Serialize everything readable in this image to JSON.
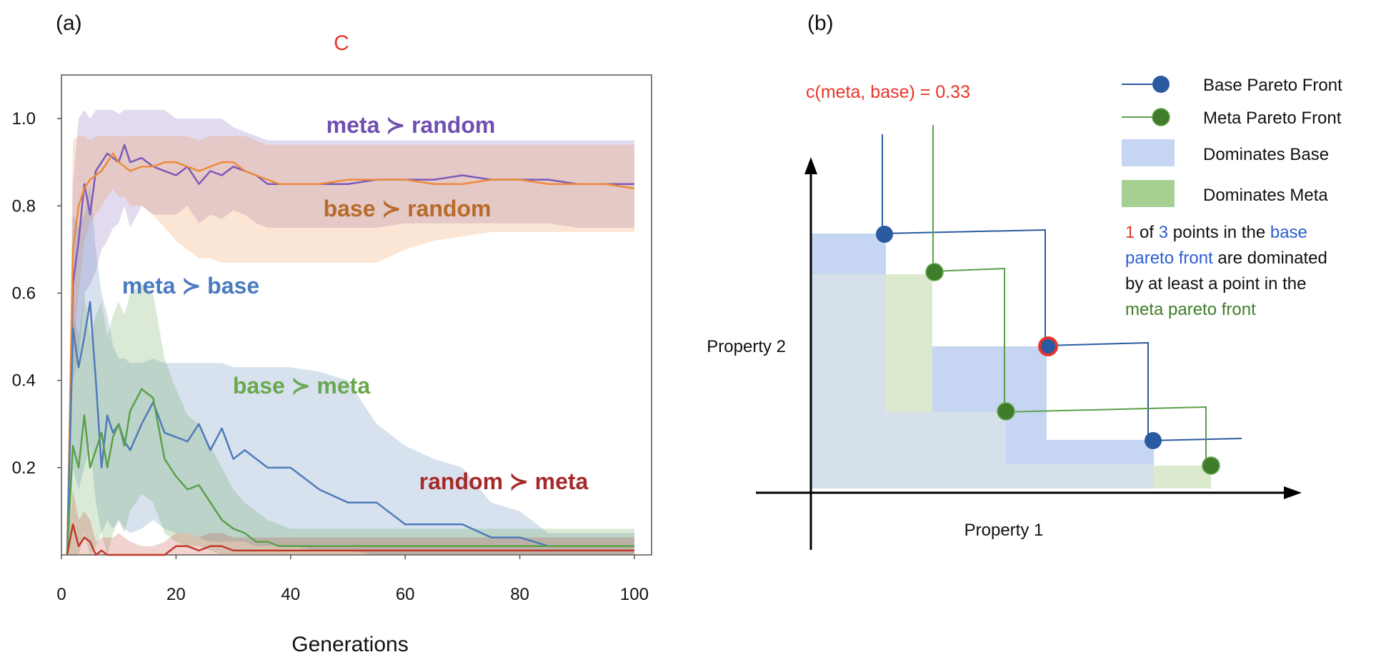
{
  "chart_data": [
    {
      "type": "line",
      "panel_label": "(a)",
      "title": "C",
      "xlabel": "Generations",
      "ylabel": "",
      "xlim": [
        0,
        103
      ],
      "ylim": [
        0,
        1.1
      ],
      "xticks": [
        0,
        20,
        40,
        60,
        80,
        100
      ],
      "yticks": [
        0.2,
        0.4,
        0.6,
        0.8,
        1.0
      ],
      "xtick_labels": [
        "0",
        "20",
        "40",
        "60",
        "80",
        "100"
      ],
      "ytick_labels": [
        "0.2",
        "0.4",
        "0.6",
        "0.8",
        "1.0"
      ],
      "x": [
        1,
        2,
        3,
        4,
        5,
        6,
        7,
        8,
        9,
        10,
        11,
        12,
        14,
        16,
        18,
        20,
        22,
        24,
        26,
        28,
        30,
        32,
        34,
        36,
        38,
        40,
        45,
        50,
        55,
        60,
        65,
        70,
        75,
        80,
        85,
        90,
        95,
        100
      ],
      "series": [
        {
          "name": "meta ≻ random",
          "color": "#7b5bb8",
          "label_color": "#6f4fb0",
          "values": [
            0,
            0.62,
            0.72,
            0.85,
            0.78,
            0.88,
            0.9,
            0.92,
            0.91,
            0.9,
            0.94,
            0.9,
            0.91,
            0.89,
            0.88,
            0.87,
            0.89,
            0.85,
            0.88,
            0.87,
            0.89,
            0.88,
            0.87,
            0.85,
            0.85,
            0.85,
            0.85,
            0.85,
            0.86,
            0.86,
            0.86,
            0.87,
            0.86,
            0.86,
            0.86,
            0.85,
            0.85,
            0.85
          ],
          "band_upper": [
            0,
            0.85,
            1.0,
            1.02,
            1.0,
            1.02,
            1.02,
            1.02,
            1.02,
            1.01,
            1.02,
            1.02,
            1.02,
            1.02,
            1.02,
            1.0,
            1.0,
            1.0,
            1.0,
            1.0,
            0.98,
            0.97,
            0.96,
            0.95,
            0.95,
            0.95,
            0.95,
            0.95,
            0.95,
            0.95,
            0.95,
            0.95,
            0.95,
            0.95,
            0.95,
            0.95,
            0.95,
            0.95
          ],
          "band_lower": [
            0,
            0.4,
            0.45,
            0.6,
            0.62,
            0.65,
            0.7,
            0.72,
            0.75,
            0.76,
            0.8,
            0.75,
            0.8,
            0.78,
            0.78,
            0.78,
            0.8,
            0.76,
            0.78,
            0.77,
            0.79,
            0.78,
            0.76,
            0.75,
            0.75,
            0.75,
            0.75,
            0.75,
            0.75,
            0.76,
            0.76,
            0.76,
            0.76,
            0.76,
            0.76,
            0.75,
            0.75,
            0.75
          ]
        },
        {
          "name": "base ≻ random",
          "color": "#ee8a3a",
          "label_color": "#b86a2a",
          "values": [
            0,
            0.7,
            0.8,
            0.84,
            0.86,
            0.87,
            0.88,
            0.9,
            0.92,
            0.9,
            0.89,
            0.88,
            0.89,
            0.89,
            0.9,
            0.9,
            0.89,
            0.88,
            0.89,
            0.9,
            0.9,
            0.88,
            0.87,
            0.86,
            0.85,
            0.85,
            0.85,
            0.86,
            0.86,
            0.86,
            0.85,
            0.85,
            0.86,
            0.86,
            0.85,
            0.85,
            0.85,
            0.84
          ],
          "band_upper": [
            0,
            0.95,
            0.96,
            0.96,
            0.95,
            0.96,
            0.96,
            0.96,
            0.96,
            0.96,
            0.96,
            0.96,
            0.96,
            0.96,
            0.96,
            0.96,
            0.96,
            0.95,
            0.96,
            0.96,
            0.96,
            0.96,
            0.95,
            0.94,
            0.94,
            0.94,
            0.94,
            0.94,
            0.94,
            0.94,
            0.94,
            0.94,
            0.94,
            0.94,
            0.94,
            0.94,
            0.94,
            0.94
          ],
          "band_lower": [
            0,
            0.45,
            0.6,
            0.72,
            0.76,
            0.78,
            0.8,
            0.82,
            0.84,
            0.82,
            0.82,
            0.8,
            0.8,
            0.78,
            0.75,
            0.72,
            0.7,
            0.68,
            0.68,
            0.67,
            0.67,
            0.67,
            0.67,
            0.67,
            0.67,
            0.67,
            0.67,
            0.67,
            0.67,
            0.7,
            0.72,
            0.73,
            0.74,
            0.74,
            0.74,
            0.74,
            0.74,
            0.74
          ]
        },
        {
          "name": "meta ≻ base",
          "color": "#4f7bb8",
          "label_color": "#4a7bc0",
          "values": [
            0,
            0.52,
            0.43,
            0.5,
            0.58,
            0.4,
            0.2,
            0.32,
            0.28,
            0.3,
            0.26,
            0.24,
            0.3,
            0.35,
            0.28,
            0.27,
            0.26,
            0.3,
            0.24,
            0.29,
            0.22,
            0.24,
            0.22,
            0.2,
            0.2,
            0.2,
            0.15,
            0.12,
            0.12,
            0.07,
            0.07,
            0.07,
            0.04,
            0.04,
            0.02,
            0.02,
            0.02,
            0.02
          ],
          "band_upper": [
            0,
            0.78,
            0.75,
            0.78,
            0.85,
            0.7,
            0.6,
            0.55,
            0.48,
            0.45,
            0.45,
            0.44,
            0.44,
            0.45,
            0.44,
            0.44,
            0.44,
            0.44,
            0.44,
            0.44,
            0.43,
            0.43,
            0.43,
            0.43,
            0.43,
            0.43,
            0.42,
            0.4,
            0.3,
            0.25,
            0.22,
            0.2,
            0.12,
            0.1,
            0.05,
            0.05,
            0.05,
            0.05
          ],
          "band_lower": [
            0,
            0.2,
            0.15,
            0.2,
            0.25,
            0.12,
            0.05,
            0.08,
            0.06,
            0.08,
            0.06,
            0.05,
            0.06,
            0.08,
            0.06,
            0.05,
            0.05,
            0.04,
            0.03,
            0.03,
            0.03,
            0.03,
            0.02,
            0.02,
            0.02,
            0.02,
            0.01,
            0.01,
            0.0,
            0.0,
            0.0,
            0.0,
            0.0,
            0.0,
            0.0,
            0.0,
            0.0,
            0.0
          ]
        },
        {
          "name": "base ≻ meta",
          "color": "#5aa04a",
          "label_color": "#6aa84f",
          "values": [
            0,
            0.25,
            0.2,
            0.32,
            0.2,
            0.24,
            0.28,
            0.2,
            0.27,
            0.3,
            0.25,
            0.33,
            0.38,
            0.36,
            0.22,
            0.18,
            0.15,
            0.16,
            0.12,
            0.08,
            0.06,
            0.05,
            0.03,
            0.03,
            0.02,
            0.02,
            0.02,
            0.02,
            0.02,
            0.02,
            0.02,
            0.02,
            0.02,
            0.02,
            0.02,
            0.02,
            0.02,
            0.02
          ],
          "band_upper": [
            0,
            0.55,
            0.5,
            0.6,
            0.5,
            0.55,
            0.58,
            0.5,
            0.55,
            0.58,
            0.55,
            0.6,
            0.62,
            0.6,
            0.45,
            0.38,
            0.32,
            0.3,
            0.25,
            0.2,
            0.15,
            0.12,
            0.1,
            0.08,
            0.07,
            0.06,
            0.06,
            0.06,
            0.06,
            0.06,
            0.06,
            0.06,
            0.06,
            0.06,
            0.06,
            0.06,
            0.06,
            0.06
          ],
          "band_lower": [
            0,
            0.0,
            0.0,
            0.05,
            0.0,
            0.02,
            0.05,
            0.0,
            0.05,
            0.08,
            0.05,
            0.1,
            0.14,
            0.12,
            0.05,
            0.03,
            0.02,
            0.02,
            0.01,
            0.0,
            0.0,
            0.0,
            0.0,
            0.0,
            0.0,
            0.0,
            0.0,
            0.0,
            0.0,
            0.0,
            0.0,
            0.0,
            0.0,
            0.0,
            0.0,
            0.0,
            0.0,
            0.0
          ]
        },
        {
          "name": "random ≻ meta",
          "color": "#c0392b",
          "label_color": "#a52a2a",
          "values": [
            0,
            0.07,
            0.02,
            0.04,
            0.03,
            0.0,
            0.01,
            0.0,
            0.0,
            0.0,
            0.0,
            0.0,
            0.0,
            0.0,
            0.0,
            0.02,
            0.02,
            0.01,
            0.02,
            0.02,
            0.01,
            0.01,
            0.01,
            0.01,
            0.01,
            0.01,
            0.01,
            0.01,
            0.01,
            0.01,
            0.01,
            0.01,
            0.01,
            0.01,
            0.01,
            0.01,
            0.01,
            0.01
          ],
          "band_upper": [
            0,
            0.15,
            0.08,
            0.1,
            0.08,
            0.03,
            0.04,
            0.04,
            0.04,
            0.05,
            0.04,
            0.03,
            0.02,
            0.02,
            0.03,
            0.05,
            0.05,
            0.04,
            0.05,
            0.05,
            0.04,
            0.04,
            0.04,
            0.04,
            0.04,
            0.04,
            0.04,
            0.04,
            0.04,
            0.04,
            0.04,
            0.04,
            0.04,
            0.04,
            0.04,
            0.04,
            0.04,
            0.04
          ],
          "band_lower": [
            0,
            0.0,
            0.0,
            0.0,
            0.0,
            0.0,
            0.0,
            0.0,
            0.0,
            0.0,
            0.0,
            0.0,
            0.0,
            0.0,
            0.0,
            0.0,
            0.0,
            0.0,
            0.0,
            0.0,
            0.0,
            0.0,
            0.0,
            0.0,
            0.0,
            0.0,
            0.0,
            0.0,
            0.0,
            0.0,
            0.0,
            0.0,
            0.0,
            0.0,
            0.0,
            0.0,
            0.0,
            0.0
          ]
        }
      ]
    },
    {
      "type": "scatter",
      "panel_label": "(b)",
      "annotation": "c(meta, base) = 0.33",
      "xlabel": "Property 1",
      "ylabel": "Property 2",
      "xlim": [
        0,
        10
      ],
      "ylim": [
        0,
        10
      ],
      "series": [
        {
          "name": "Base Pareto Front",
          "color": "#2a5aa0",
          "points": [
            [
              1.5,
              8.1
            ],
            [
              4.8,
              4.5
            ],
            [
              7.7,
              1.5
            ]
          ],
          "dominated_points": [
            [
              4.8,
              4.5
            ]
          ],
          "dominates_region_color": "#c5d5f2"
        },
        {
          "name": "Meta Pareto Front",
          "color": "#3f7d2a",
          "points": [
            [
              2.5,
              6.9
            ],
            [
              4.1,
              2.6
            ],
            [
              8.1,
              0.8
            ]
          ],
          "dominates_region_color": "#a6cf92"
        }
      ],
      "legend": [
        "Base Pareto Front",
        "Meta Pareto Front",
        "Dominates Base",
        "Dominates Meta"
      ],
      "note": {
        "part1": "1",
        "part2": " of ",
        "part3": "3",
        "part4": " points in the ",
        "part5": "base",
        "part6": "pareto front",
        "part7": " are dominated",
        "part8": "by at least a point in the",
        "part9": "meta pareto front"
      }
    }
  ]
}
